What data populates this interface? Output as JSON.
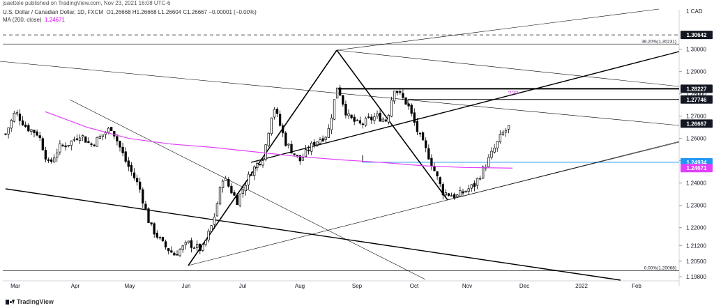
{
  "header": {
    "publisher": "jsaettele published on TradingView.com, Nov 23, 2021 16:08 UTC-6",
    "symbol_line": "U.S. Dollar / Canadian Dollar, 1D, FXCM",
    "ohlc": "O1.26668 H1.26668 L1.26604 C1.26667 −0.00001 (−0.00%)",
    "ma_label": "MA (200, close)",
    "ma_value": "1.24671"
  },
  "footer": {
    "brand": "TradingView"
  },
  "colors": {
    "candle": "#000000",
    "ma": "#e040fb",
    "blue_line": "#2196f3",
    "question": "#e040fb",
    "trendline": "#000000",
    "grid": "#bdbdbd"
  },
  "chart_data": {
    "type": "candlestick",
    "symbol": "USD/CAD",
    "timeframe": "1D",
    "x_tick_labels": [
      "Mar",
      "Apr",
      "May",
      "Jun",
      "Jul",
      "Aug",
      "Sep",
      "Oct",
      "Nov",
      "Dec",
      "2022",
      "Feb"
    ],
    "y_tick_labels": [
      "1.30000",
      "1.29000",
      "1.28000",
      "1.27000",
      "1.26000",
      "1.25000",
      "1.24000",
      "1.23000",
      "1.22000",
      "1.21200",
      "1.20500",
      "1.19800"
    ],
    "ylim": [
      1.1968,
      1.3177
    ],
    "price_tags": [
      {
        "label": "1 CAD",
        "value": 1.3177,
        "style": "plain"
      },
      {
        "label": "1.30642",
        "value": 1.30642,
        "style": "dark"
      },
      {
        "label": "1.28227",
        "value": 1.28227,
        "style": "dark"
      },
      {
        "label": "1.27746",
        "value": 1.27746,
        "style": "dark"
      },
      {
        "label": "1.26667",
        "value": 1.26667,
        "style": "dark"
      },
      {
        "label": "1.24934",
        "value": 1.24934,
        "style": "blue"
      },
      {
        "label": "1.24671",
        "value": 1.24671,
        "style": "magenta"
      }
    ],
    "horizontal_levels": [
      {
        "value": 1.30642,
        "style": "dashed"
      },
      {
        "value": 1.30231,
        "label": "38.20%(1.30231)"
      },
      {
        "value": 1.20068,
        "label": "0.00%(1.20068)"
      },
      {
        "value": 1.28227
      },
      {
        "value": 1.27746
      },
      {
        "value": 1.24934
      }
    ],
    "annotations": [
      "???"
    ],
    "ma_200": [
      [
        1.272,
        65
      ],
      [
        1.265,
        125
      ],
      [
        1.26,
        185
      ],
      [
        1.2575,
        245
      ],
      [
        1.256,
        305
      ],
      [
        1.254,
        365
      ],
      [
        1.252,
        425
      ],
      [
        1.2505,
        485
      ],
      [
        1.2493,
        545
      ],
      [
        1.2478,
        605
      ],
      [
        1.247,
        665
      ],
      [
        1.24671,
        735
      ]
    ],
    "close_path": [
      [
        1.262,
        8
      ],
      [
        1.272,
        22
      ],
      [
        1.265,
        38
      ],
      [
        1.262,
        55
      ],
      [
        1.248,
        70
      ],
      [
        1.256,
        85
      ],
      [
        1.258,
        100
      ],
      [
        1.262,
        115
      ],
      [
        1.257,
        130
      ],
      [
        1.265,
        160
      ],
      [
        1.25,
        180
      ],
      [
        1.238,
        200
      ],
      [
        1.221,
        215
      ],
      [
        1.212,
        235
      ],
      [
        1.208,
        250
      ],
      [
        1.213,
        270
      ],
      [
        1.21,
        290
      ],
      [
        1.222,
        305
      ],
      [
        1.243,
        320
      ],
      [
        1.232,
        340
      ],
      [
        1.245,
        360
      ],
      [
        1.252,
        378
      ],
      [
        1.275,
        392
      ],
      [
        1.258,
        410
      ],
      [
        1.25,
        430
      ],
      [
        1.258,
        450
      ],
      [
        1.262,
        470
      ],
      [
        1.284,
        484
      ],
      [
        1.27,
        498
      ],
      [
        1.266,
        515
      ],
      [
        1.27,
        540
      ],
      [
        1.268,
        555
      ],
      [
        1.283,
        565
      ],
      [
        1.275,
        585
      ],
      [
        1.262,
        600
      ],
      [
        1.252,
        615
      ],
      [
        1.236,
        635
      ],
      [
        1.234,
        655
      ],
      [
        1.239,
        680
      ],
      [
        1.25,
        700
      ],
      [
        1.262,
        720
      ],
      [
        1.2666,
        735
      ]
    ]
  }
}
